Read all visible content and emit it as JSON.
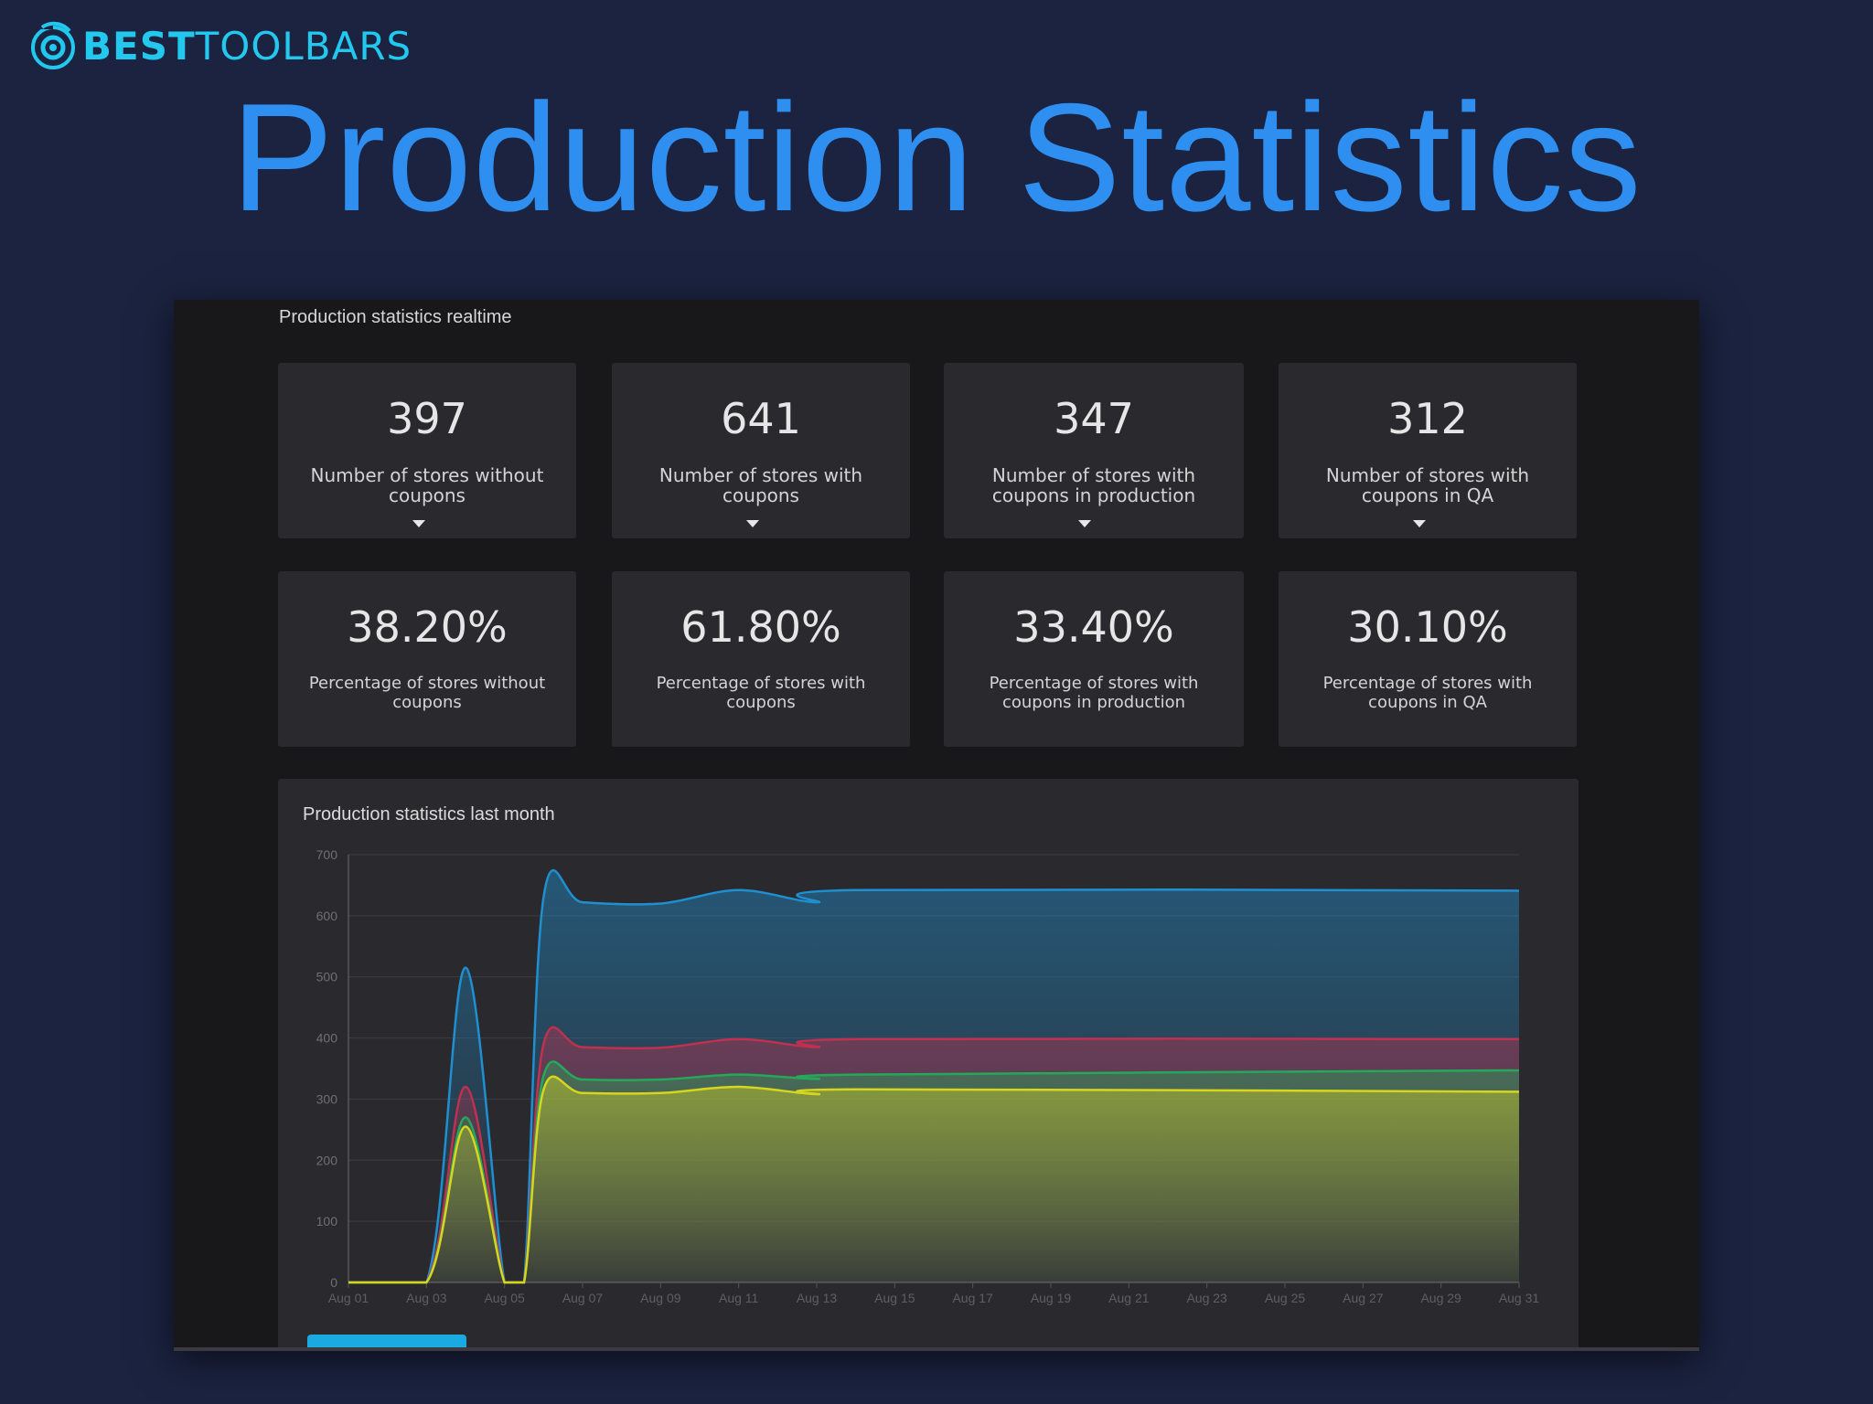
{
  "brand": {
    "part1": "BEST",
    "part2": "TOOLBARS",
    "color": "#23c8ef"
  },
  "headline": "Production Statistics",
  "panel": {
    "title": "Production statistics realtime",
    "counts": [
      {
        "value": "397",
        "label": "Number of stores without coupons"
      },
      {
        "value": "641",
        "label": "Number of stores with coupons"
      },
      {
        "value": "347",
        "label": "Number of stores with coupons in production"
      },
      {
        "value": "312",
        "label": "Number of stores with coupons in QA"
      }
    ],
    "percentages": [
      {
        "value": "38.20%",
        "label": "Percentage of stores without coupons"
      },
      {
        "value": "61.80%",
        "label": "Percentage of stores with coupons"
      },
      {
        "value": "33.40%",
        "label": "Percentage of stores with coupons in production"
      },
      {
        "value": "30.10%",
        "label": "Percentage of stores with coupons in QA"
      }
    ]
  },
  "chart_data": {
    "type": "area",
    "title": "Production statistics last month",
    "ylim": [
      0,
      700
    ],
    "yticks": [
      0,
      100,
      200,
      300,
      400,
      500,
      600,
      700
    ],
    "xticks": [
      "Aug 01",
      "Aug 03",
      "Aug 05",
      "Aug 07",
      "Aug 09",
      "Aug 11",
      "Aug 13",
      "Aug 15",
      "Aug 17",
      "Aug 19",
      "Aug 21",
      "Aug 23",
      "Aug 25",
      "Aug 27",
      "Aug 29",
      "Aug 31"
    ],
    "x": [
      1,
      3,
      4,
      5,
      5.5,
      6,
      7,
      9,
      11,
      13,
      14,
      31
    ],
    "grid": true,
    "series": [
      {
        "color": "#1f8fd0",
        "values": [
          0,
          0,
          515,
          0,
          0,
          630,
          622,
          620,
          642,
          622,
          642,
          641
        ]
      },
      {
        "color": "#c0304f",
        "values": [
          0,
          0,
          320,
          0,
          0,
          390,
          385,
          384,
          398,
          385,
          398,
          398
        ]
      },
      {
        "color": "#25a85a",
        "values": [
          0,
          0,
          270,
          0,
          0,
          338,
          332,
          332,
          340,
          333,
          340,
          347
        ]
      },
      {
        "color": "#d6d61f",
        "values": [
          0,
          0,
          255,
          0,
          0,
          315,
          310,
          310,
          320,
          308,
          316,
          312
        ]
      }
    ]
  }
}
